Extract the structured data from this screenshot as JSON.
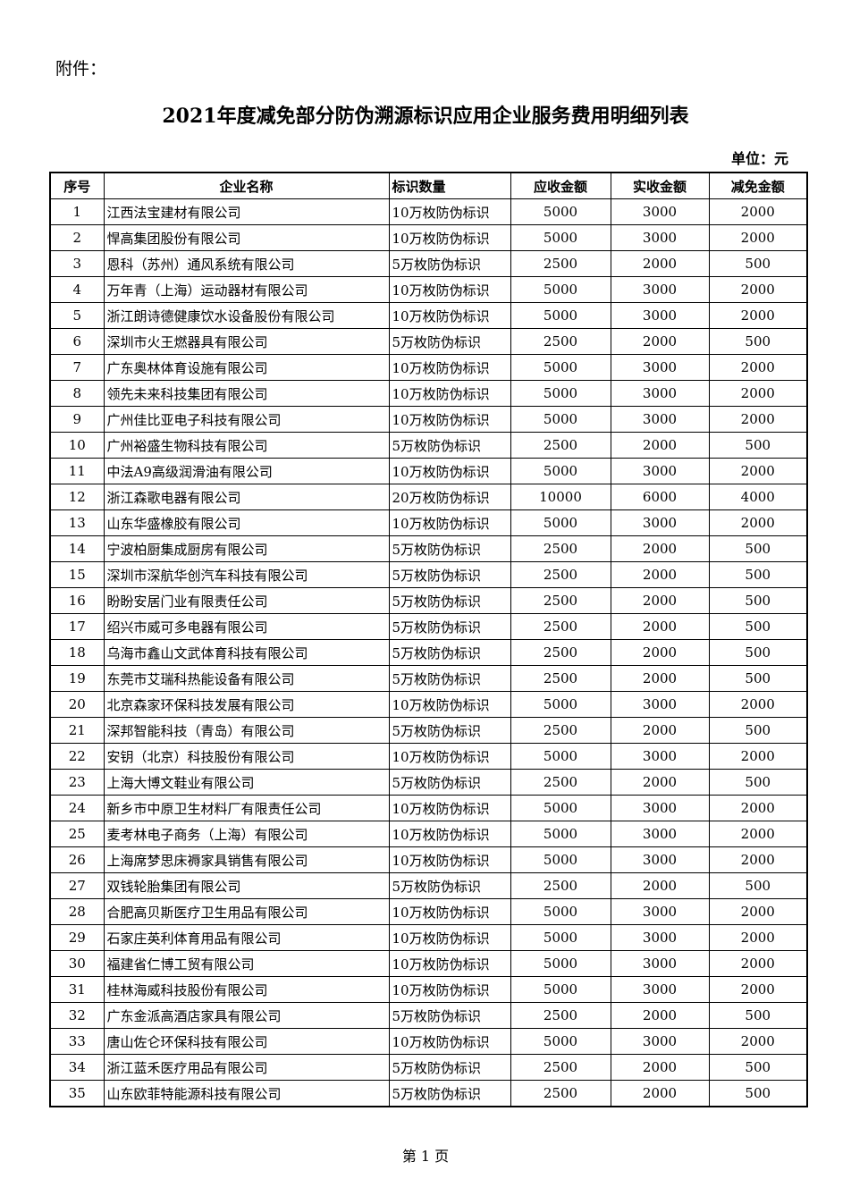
{
  "attachment_label": "附件：",
  "title": "2021年度减免部分防伪溯源标识应用企业服务费用明细列表",
  "unit": "单位：元",
  "table": {
    "headers": [
      "序号",
      "企业名称",
      "标识数量",
      "应收金额",
      "实收金额",
      "减免金额"
    ],
    "rows": [
      [
        "1",
        "江西法宝建材有限公司",
        "10万枚防伪标识",
        "5000",
        "3000",
        "2000"
      ],
      [
        "2",
        "悍高集团股份有限公司",
        "10万枚防伪标识",
        "5000",
        "3000",
        "2000"
      ],
      [
        "3",
        "恩科（苏州）通风系统有限公司",
        "5万枚防伪标识",
        "2500",
        "2000",
        "500"
      ],
      [
        "4",
        "万年青（上海）运动器材有限公司",
        "10万枚防伪标识",
        "5000",
        "3000",
        "2000"
      ],
      [
        "5",
        "浙江朗诗德健康饮水设备股份有限公司",
        "10万枚防伪标识",
        "5000",
        "3000",
        "2000"
      ],
      [
        "6",
        "深圳市火王燃器具有限公司",
        "5万枚防伪标识",
        "2500",
        "2000",
        "500"
      ],
      [
        "7",
        "广东奥林体育设施有限公司",
        "10万枚防伪标识",
        "5000",
        "3000",
        "2000"
      ],
      [
        "8",
        "领先未来科技集团有限公司",
        "10万枚防伪标识",
        "5000",
        "3000",
        "2000"
      ],
      [
        "9",
        "广州佳比亚电子科技有限公司",
        "10万枚防伪标识",
        "5000",
        "3000",
        "2000"
      ],
      [
        "10",
        "广州裕盛生物科技有限公司",
        "5万枚防伪标识",
        "2500",
        "2000",
        "500"
      ],
      [
        "11",
        "中法A9高级润滑油有限公司",
        "10万枚防伪标识",
        "5000",
        "3000",
        "2000"
      ],
      [
        "12",
        "浙江森歌电器有限公司",
        "20万枚防伪标识",
        "10000",
        "6000",
        "4000"
      ],
      [
        "13",
        "山东华盛橡胶有限公司",
        "10万枚防伪标识",
        "5000",
        "3000",
        "2000"
      ],
      [
        "14",
        "宁波柏厨集成厨房有限公司",
        "5万枚防伪标识",
        "2500",
        "2000",
        "500"
      ],
      [
        "15",
        "深圳市深航华创汽车科技有限公司",
        "5万枚防伪标识",
        "2500",
        "2000",
        "500"
      ],
      [
        "16",
        "盼盼安居门业有限责任公司",
        "5万枚防伪标识",
        "2500",
        "2000",
        "500"
      ],
      [
        "17",
        "绍兴市威可多电器有限公司",
        "5万枚防伪标识",
        "2500",
        "2000",
        "500"
      ],
      [
        "18",
        "乌海市鑫山文武体育科技有限公司",
        "5万枚防伪标识",
        "2500",
        "2000",
        "500"
      ],
      [
        "19",
        "东莞市艾瑞科热能设备有限公司",
        "5万枚防伪标识",
        "2500",
        "2000",
        "500"
      ],
      [
        "20",
        "北京森家环保科技发展有限公司",
        "10万枚防伪标识",
        "5000",
        "3000",
        "2000"
      ],
      [
        "21",
        "深邦智能科技（青岛）有限公司",
        "5万枚防伪标识",
        "2500",
        "2000",
        "500"
      ],
      [
        "22",
        "安钥（北京）科技股份有限公司",
        "10万枚防伪标识",
        "5000",
        "3000",
        "2000"
      ],
      [
        "23",
        "上海大博文鞋业有限公司",
        "5万枚防伪标识",
        "2500",
        "2000",
        "500"
      ],
      [
        "24",
        "新乡市中原卫生材料厂有限责任公司",
        "10万枚防伪标识",
        "5000",
        "3000",
        "2000"
      ],
      [
        "25",
        "麦考林电子商务（上海）有限公司",
        "10万枚防伪标识",
        "5000",
        "3000",
        "2000"
      ],
      [
        "26",
        "上海席梦思床褥家具销售有限公司",
        "10万枚防伪标识",
        "5000",
        "3000",
        "2000"
      ],
      [
        "27",
        "双钱轮胎集团有限公司",
        "5万枚防伪标识",
        "2500",
        "2000",
        "500"
      ],
      [
        "28",
        "合肥高贝斯医疗卫生用品有限公司",
        "10万枚防伪标识",
        "5000",
        "3000",
        "2000"
      ],
      [
        "29",
        "石家庄英利体育用品有限公司",
        "10万枚防伪标识",
        "5000",
        "3000",
        "2000"
      ],
      [
        "30",
        "福建省仁博工贸有限公司",
        "10万枚防伪标识",
        "5000",
        "3000",
        "2000"
      ],
      [
        "31",
        "桂林海威科技股份有限公司",
        "10万枚防伪标识",
        "5000",
        "3000",
        "2000"
      ],
      [
        "32",
        "广东金派高酒店家具有限公司",
        "5万枚防伪标识",
        "2500",
        "2000",
        "500"
      ],
      [
        "33",
        "唐山佐仑环保科技有限公司",
        "10万枚防伪标识",
        "5000",
        "3000",
        "2000"
      ],
      [
        "34",
        "浙江蓝禾医疗用品有限公司",
        "5万枚防伪标识",
        "2500",
        "2000",
        "500"
      ],
      [
        "35",
        "山东欧菲特能源科技有限公司",
        "5万枚防伪标识",
        "2500",
        "2000",
        "500"
      ]
    ]
  },
  "footer": "第 1 页"
}
